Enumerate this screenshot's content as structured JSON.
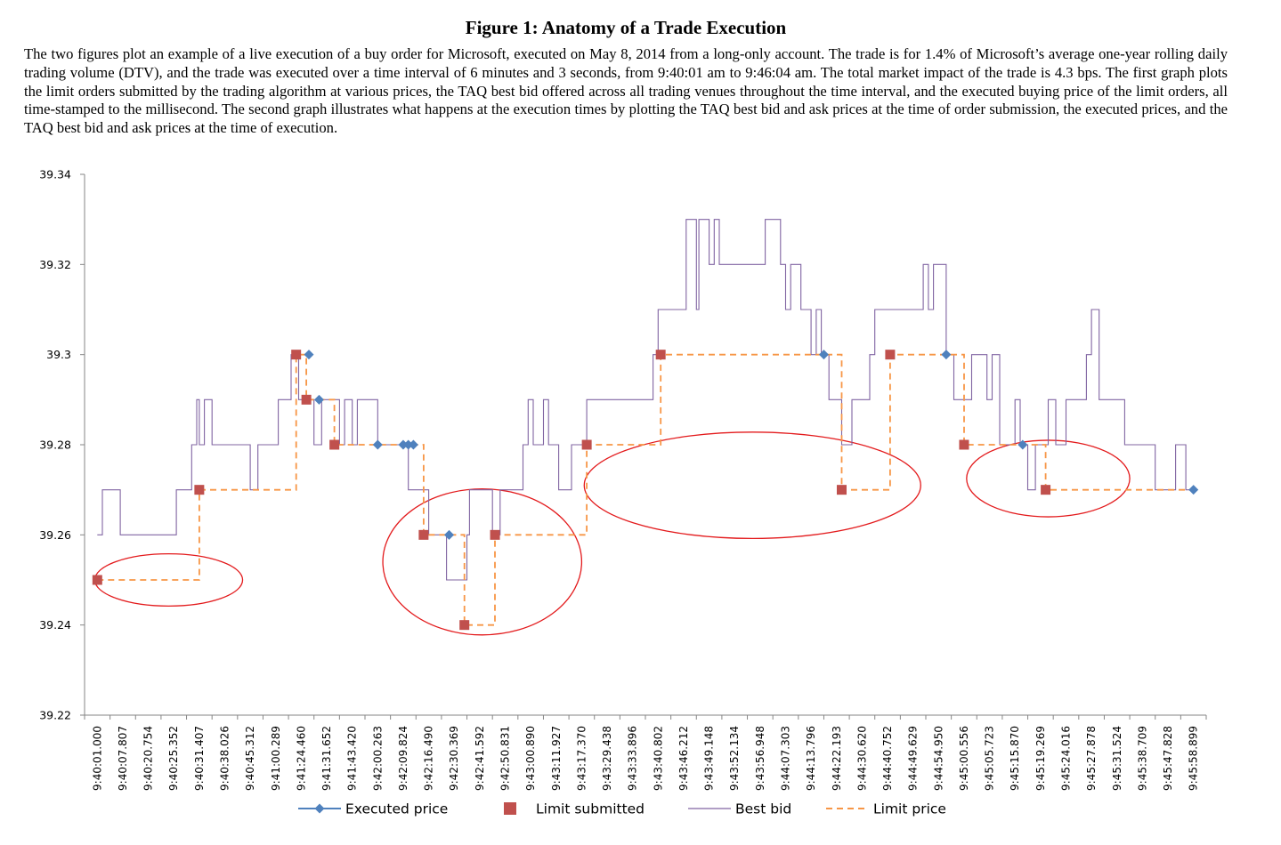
{
  "figure": {
    "title": "Figure 1:  Anatomy of a Trade Execution",
    "caption": "The two figures plot an example of a live execution of a buy order for Microsoft, executed on May 8, 2014 from a long-only account. The trade is for 1.4% of Microsoft’s average one-year rolling daily trading volume (DTV), and the trade was executed over a time interval of 6 minutes and 3 seconds, from 9:40:01 am to 9:46:04 am. The total market impact of the trade is 4.3 bps. The first graph plots the limit orders submitted by the trading algorithm at various prices, the TAQ best bid offered across all trading venues throughout the time interval, and the executed buying price of the limit orders, all time-stamped to the millisecond. The second graph illustrates what happens at the execution times by plotting the TAQ best bid and ask prices at the time of order submission, the executed prices, and the TAQ best bid and ask prices at the time of execution."
  },
  "chart_data": {
    "type": "line",
    "title": "",
    "xlabel": "",
    "ylabel": "",
    "ylim": [
      39.22,
      39.34
    ],
    "y_ticks": [
      "39.22",
      "39.24",
      "39.26",
      "39.28",
      "39.3",
      "39.32",
      "39.34"
    ],
    "x_tick_labels": [
      "9:40:01.000",
      "9:40:07.807",
      "9:40:20.754",
      "9:40:25.352",
      "9:40:31.407",
      "9:40:38.026",
      "9:40:45.312",
      "9:41:00.289",
      "9:41:24.460",
      "9:41:31.652",
      "9:41:43.420",
      "9:42:00.263",
      "9:42:09.824",
      "9:42:16.490",
      "9:42:30.369",
      "9:42:41.592",
      "9:42:50.831",
      "9:43:00.890",
      "9:43:11.927",
      "9:43:17.370",
      "9:43:29.438",
      "9:43:33.896",
      "9:43:40.802",
      "9:43:46.212",
      "9:43:49.148",
      "9:43:52.134",
      "9:43:56.948",
      "9:44:07.303",
      "9:44:13.796",
      "9:44:22.193",
      "9:44:30.620",
      "9:44:40.752",
      "9:44:49.629",
      "9:44:54.950",
      "9:45:00.556",
      "9:45:05.723",
      "9:45:15.870",
      "9:45:19.269",
      "9:45:24.016",
      "9:45:27.878",
      "9:45:31.524",
      "9:45:38.709",
      "9:45:47.828",
      "9:45:58.899"
    ],
    "grid": false,
    "legend_position": "bottom",
    "series": [
      {
        "name": "Executed price",
        "style": "diamond-marker",
        "color": "#4f81bd",
        "points": [
          {
            "x": 8.3,
            "y": 39.3
          },
          {
            "x": 8.7,
            "y": 39.29
          },
          {
            "x": 11.0,
            "y": 39.28
          },
          {
            "x": 12.0,
            "y": 39.28
          },
          {
            "x": 12.2,
            "y": 39.28
          },
          {
            "x": 12.4,
            "y": 39.28
          },
          {
            "x": 13.8,
            "y": 39.26
          },
          {
            "x": 28.5,
            "y": 39.3
          },
          {
            "x": 33.3,
            "y": 39.3
          },
          {
            "x": 36.3,
            "y": 39.28
          },
          {
            "x": 43.0,
            "y": 39.27
          }
        ]
      },
      {
        "name": "Limit submitted",
        "style": "square-marker",
        "color": "#c0504d",
        "points": [
          {
            "x": 0.0,
            "y": 39.25
          },
          {
            "x": 4.0,
            "y": 39.27
          },
          {
            "x": 7.8,
            "y": 39.3
          },
          {
            "x": 8.2,
            "y": 39.29
          },
          {
            "x": 9.3,
            "y": 39.28
          },
          {
            "x": 12.8,
            "y": 39.26
          },
          {
            "x": 14.4,
            "y": 39.24
          },
          {
            "x": 15.6,
            "y": 39.26
          },
          {
            "x": 19.2,
            "y": 39.28
          },
          {
            "x": 22.1,
            "y": 39.3
          },
          {
            "x": 29.2,
            "y": 39.27
          },
          {
            "x": 31.1,
            "y": 39.3
          },
          {
            "x": 34.0,
            "y": 39.28
          },
          {
            "x": 37.2,
            "y": 39.27
          }
        ]
      },
      {
        "name": "Best bid",
        "style": "step-line",
        "color": "#8064a2",
        "points": [
          {
            "x": 0.0,
            "y": 39.26
          },
          {
            "x": 0.2,
            "y": 39.27
          },
          {
            "x": 0.9,
            "y": 39.26
          },
          {
            "x": 3.1,
            "y": 39.27
          },
          {
            "x": 3.7,
            "y": 39.28
          },
          {
            "x": 3.9,
            "y": 39.29
          },
          {
            "x": 4.0,
            "y": 39.28
          },
          {
            "x": 4.2,
            "y": 39.29
          },
          {
            "x": 4.5,
            "y": 39.28
          },
          {
            "x": 6.0,
            "y": 39.27
          },
          {
            "x": 6.3,
            "y": 39.28
          },
          {
            "x": 7.1,
            "y": 39.29
          },
          {
            "x": 7.6,
            "y": 39.3
          },
          {
            "x": 7.9,
            "y": 39.29
          },
          {
            "x": 8.5,
            "y": 39.28
          },
          {
            "x": 8.8,
            "y": 39.29
          },
          {
            "x": 9.5,
            "y": 39.28
          },
          {
            "x": 9.7,
            "y": 39.29
          },
          {
            "x": 10.0,
            "y": 39.28
          },
          {
            "x": 10.2,
            "y": 39.29
          },
          {
            "x": 11.0,
            "y": 39.28
          },
          {
            "x": 12.2,
            "y": 39.27
          },
          {
            "x": 13.0,
            "y": 39.26
          },
          {
            "x": 13.7,
            "y": 39.25
          },
          {
            "x": 14.5,
            "y": 39.26
          },
          {
            "x": 14.6,
            "y": 39.27
          },
          {
            "x": 15.5,
            "y": 39.26
          },
          {
            "x": 15.8,
            "y": 39.27
          },
          {
            "x": 16.7,
            "y": 39.28
          },
          {
            "x": 16.9,
            "y": 39.29
          },
          {
            "x": 17.1,
            "y": 39.28
          },
          {
            "x": 17.5,
            "y": 39.29
          },
          {
            "x": 17.7,
            "y": 39.28
          },
          {
            "x": 18.1,
            "y": 39.27
          },
          {
            "x": 18.6,
            "y": 39.28
          },
          {
            "x": 19.2,
            "y": 39.29
          },
          {
            "x": 21.8,
            "y": 39.3
          },
          {
            "x": 22.0,
            "y": 39.31
          },
          {
            "x": 23.1,
            "y": 39.33
          },
          {
            "x": 23.5,
            "y": 39.31
          },
          {
            "x": 23.6,
            "y": 39.33
          },
          {
            "x": 24.0,
            "y": 39.32
          },
          {
            "x": 24.2,
            "y": 39.33
          },
          {
            "x": 24.4,
            "y": 39.32
          },
          {
            "x": 26.2,
            "y": 39.33
          },
          {
            "x": 26.8,
            "y": 39.32
          },
          {
            "x": 27.0,
            "y": 39.31
          },
          {
            "x": 27.2,
            "y": 39.32
          },
          {
            "x": 27.6,
            "y": 39.31
          },
          {
            "x": 28.0,
            "y": 39.3
          },
          {
            "x": 28.2,
            "y": 39.31
          },
          {
            "x": 28.4,
            "y": 39.3
          },
          {
            "x": 28.7,
            "y": 39.29
          },
          {
            "x": 29.2,
            "y": 39.28
          },
          {
            "x": 29.6,
            "y": 39.29
          },
          {
            "x": 30.3,
            "y": 39.3
          },
          {
            "x": 30.5,
            "y": 39.31
          },
          {
            "x": 32.4,
            "y": 39.32
          },
          {
            "x": 32.6,
            "y": 39.31
          },
          {
            "x": 32.8,
            "y": 39.32
          },
          {
            "x": 33.3,
            "y": 39.3
          },
          {
            "x": 33.6,
            "y": 39.29
          },
          {
            "x": 34.3,
            "y": 39.3
          },
          {
            "x": 34.9,
            "y": 39.29
          },
          {
            "x": 35.1,
            "y": 39.3
          },
          {
            "x": 35.4,
            "y": 39.28
          },
          {
            "x": 36.0,
            "y": 39.29
          },
          {
            "x": 36.2,
            "y": 39.28
          },
          {
            "x": 36.5,
            "y": 39.27
          },
          {
            "x": 36.8,
            "y": 39.28
          },
          {
            "x": 37.3,
            "y": 39.29
          },
          {
            "x": 37.6,
            "y": 39.28
          },
          {
            "x": 38.0,
            "y": 39.29
          },
          {
            "x": 38.8,
            "y": 39.3
          },
          {
            "x": 39.0,
            "y": 39.31
          },
          {
            "x": 39.3,
            "y": 39.29
          },
          {
            "x": 40.3,
            "y": 39.28
          },
          {
            "x": 41.5,
            "y": 39.27
          },
          {
            "x": 42.3,
            "y": 39.28
          },
          {
            "x": 42.7,
            "y": 39.27
          }
        ]
      },
      {
        "name": "Limit price",
        "style": "dashed-step",
        "color": "#f79646",
        "points": [
          {
            "x": 0.0,
            "y": 39.25
          },
          {
            "x": 4.0,
            "y": 39.27
          },
          {
            "x": 7.8,
            "y": 39.3
          },
          {
            "x": 8.2,
            "y": 39.29
          },
          {
            "x": 9.3,
            "y": 39.28
          },
          {
            "x": 12.8,
            "y": 39.26
          },
          {
            "x": 14.4,
            "y": 39.24
          },
          {
            "x": 15.6,
            "y": 39.26
          },
          {
            "x": 19.2,
            "y": 39.28
          },
          {
            "x": 22.1,
            "y": 39.3
          },
          {
            "x": 28.6,
            "y": 39.3
          },
          {
            "x": 29.2,
            "y": 39.27
          },
          {
            "x": 31.1,
            "y": 39.3
          },
          {
            "x": 33.3,
            "y": 39.3
          },
          {
            "x": 34.0,
            "y": 39.28
          },
          {
            "x": 36.3,
            "y": 39.28
          },
          {
            "x": 37.2,
            "y": 39.27
          },
          {
            "x": 43.0,
            "y": 39.27
          }
        ]
      }
    ],
    "annotations": [
      {
        "type": "ellipse",
        "color": "#e31a1c",
        "cx": 2.8,
        "cy": 39.25,
        "rx": 2.9,
        "ry": 0.0058
      },
      {
        "type": "ellipse",
        "color": "#e31a1c",
        "cx": 15.1,
        "cy": 39.254,
        "rx": 3.9,
        "ry": 0.0162
      },
      {
        "type": "ellipse",
        "color": "#e31a1c",
        "cx": 25.7,
        "cy": 39.271,
        "rx": 6.6,
        "ry": 0.0118
      },
      {
        "type": "ellipse",
        "color": "#e31a1c",
        "cx": 37.3,
        "cy": 39.2725,
        "rx": 3.2,
        "ry": 0.0085
      }
    ]
  }
}
